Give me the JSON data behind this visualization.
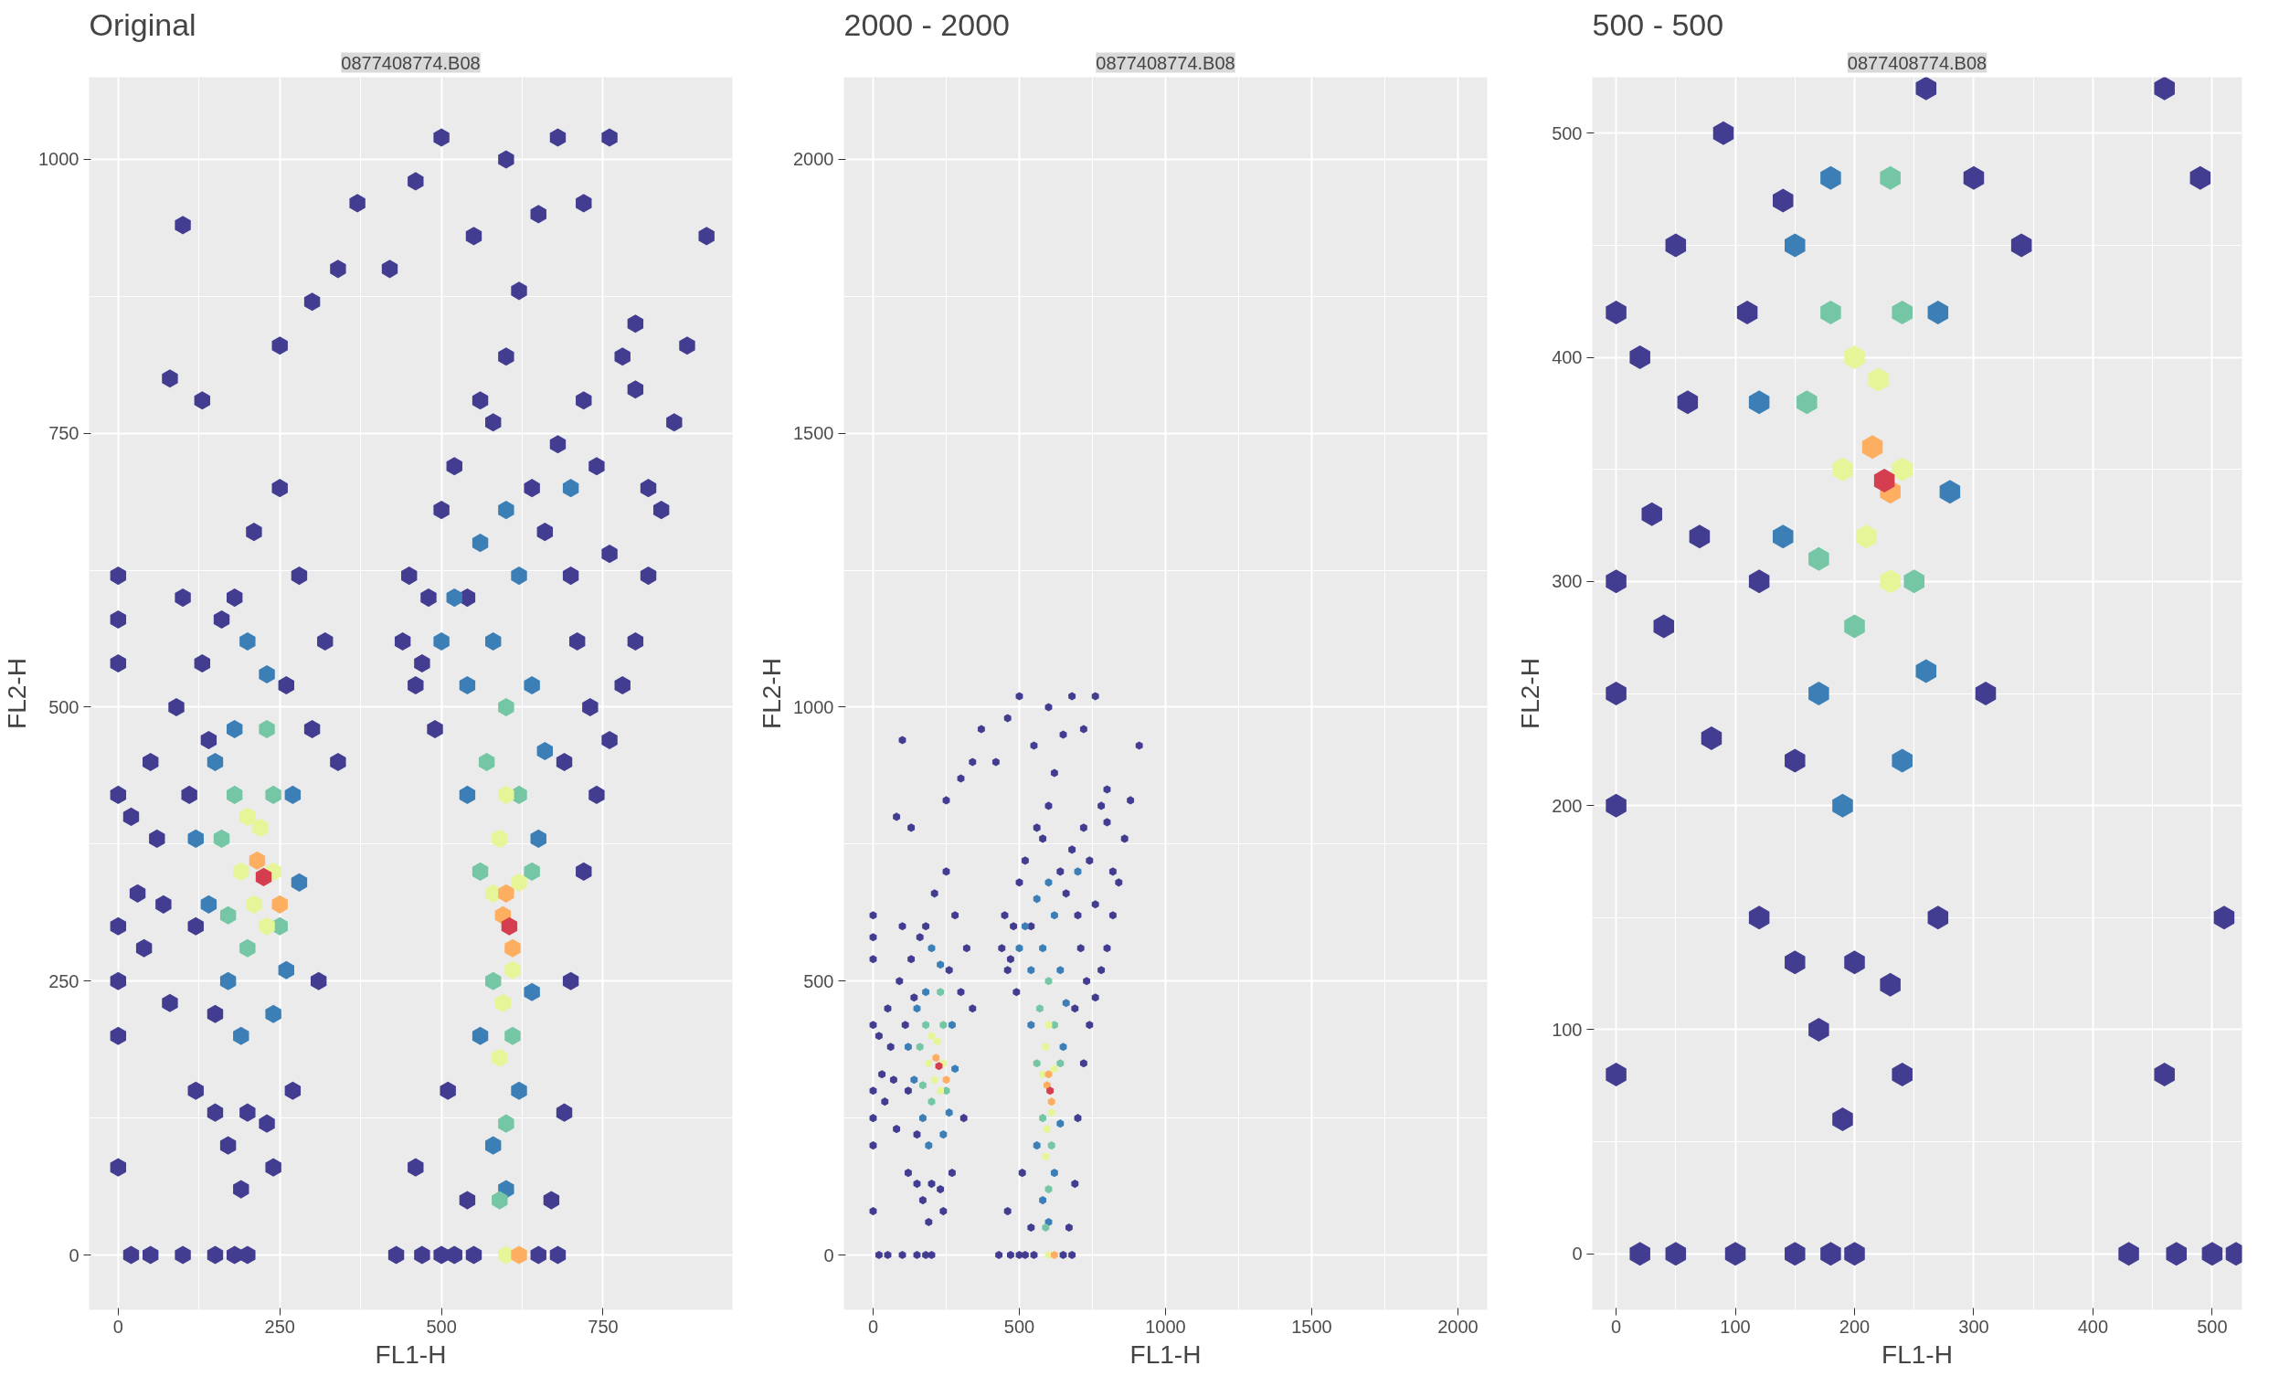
{
  "chart_data": [
    {
      "type": "scatter",
      "title": "Original",
      "subtitle": "0877408774.B08",
      "xlabel": "FL1-H",
      "ylabel": "FL2-H",
      "xlim": [
        -45,
        950
      ],
      "ylim": [
        -50,
        1075
      ],
      "xticks": [
        0,
        250,
        500,
        750
      ],
      "yticks": [
        0,
        250,
        500,
        750,
        1000
      ],
      "grid": true,
      "series": [
        {
          "color": "#423d91",
          "x": [
            0,
            0,
            0,
            0,
            0,
            0,
            0,
            0,
            20,
            30,
            40,
            50,
            60,
            70,
            80,
            90,
            100,
            110,
            120,
            120,
            130,
            140,
            150,
            150,
            160,
            170,
            180,
            190,
            200,
            210,
            230,
            240,
            250,
            260,
            270,
            280,
            300,
            310,
            320,
            340,
            80,
            100,
            130,
            250,
            300,
            340,
            370,
            200,
            150,
            100,
            50,
            20,
            180,
            430,
            470,
            500,
            520,
            550,
            650,
            680,
            460,
            510,
            540,
            670,
            690,
            700,
            720,
            740,
            760,
            780,
            800,
            820,
            840,
            860,
            880,
            910,
            450,
            470,
            490,
            500,
            520,
            540,
            560,
            580,
            600,
            620,
            640,
            660,
            680,
            700,
            720,
            740,
            760,
            780,
            800,
            820,
            500,
            600,
            680,
            760,
            420,
            460,
            550,
            650,
            720,
            800,
            460,
            690,
            710,
            730,
            440,
            480
          ],
          "values": [
            620,
            580,
            540,
            420,
            300,
            250,
            200,
            80,
            400,
            330,
            280,
            450,
            380,
            320,
            230,
            500,
            600,
            420,
            300,
            150,
            540,
            470,
            220,
            130,
            580,
            100,
            600,
            60,
            130,
            660,
            120,
            80,
            700,
            520,
            150,
            620,
            480,
            250,
            560,
            450,
            800,
            940,
            780,
            830,
            870,
            900,
            960,
            0,
            0,
            0,
            0,
            0,
            0,
            0,
            0,
            0,
            0,
            0,
            0,
            0,
            80,
            150,
            50,
            50,
            130,
            250,
            350,
            420,
            470,
            520,
            560,
            620,
            680,
            760,
            830,
            930,
            620,
            540,
            480,
            680,
            720,
            600,
            780,
            760,
            820,
            880,
            700,
            660,
            740,
            620,
            780,
            720,
            640,
            820,
            850,
            700,
            1020,
            1000,
            1020,
            1020,
            900,
            980,
            930,
            950,
            960,
            790,
            520,
            450,
            560,
            500,
            560,
            600
          ]
        },
        {
          "color": "#3b7fb6",
          "x": [
            120,
            140,
            150,
            170,
            180,
            190,
            260,
            270,
            280,
            230,
            200,
            240,
            520,
            540,
            560,
            580,
            600,
            620,
            640,
            660,
            540,
            580,
            620,
            650,
            560,
            640,
            600,
            700,
            500
          ],
          "values": [
            380,
            320,
            450,
            250,
            480,
            200,
            260,
            420,
            340,
            530,
            560,
            220,
            600,
            520,
            650,
            100,
            60,
            150,
            520,
            460,
            420,
            560,
            620,
            380,
            200,
            240,
            680,
            700,
            560
          ]
        },
        {
          "color": "#74c6a4",
          "x": [
            160,
            170,
            180,
            250,
            240,
            200,
            230,
            570,
            600,
            620,
            580,
            610,
            600,
            560,
            640,
            590
          ],
          "values": [
            380,
            310,
            420,
            300,
            420,
            280,
            480,
            450,
            500,
            420,
            250,
            200,
            120,
            350,
            350,
            50
          ]
        },
        {
          "color": "#e6f598",
          "x": [
            190,
            210,
            220,
            240,
            200,
            230,
            590,
            595,
            610,
            580,
            620,
            600,
            590,
            600
          ],
          "values": [
            350,
            320,
            390,
            350,
            400,
            300,
            380,
            230,
            260,
            330,
            340,
            420,
            180,
            0
          ]
        },
        {
          "color": "#fdae61",
          "x": [
            215,
            250,
            600,
            610,
            595,
            620
          ],
          "values": [
            360,
            320,
            330,
            280,
            310,
            0
          ]
        },
        {
          "color": "#d53e4f",
          "x": [
            225,
            605
          ],
          "values": [
            345,
            300
          ]
        }
      ]
    },
    {
      "type": "scatter",
      "title": "2000 - 2000",
      "subtitle": "0877408774.B08",
      "xlabel": "FL1-H",
      "ylabel": "FL2-H",
      "xlim": [
        -100,
        2100
      ],
      "ylim": [
        -100,
        2150
      ],
      "xticks": [
        0,
        500,
        1000,
        1500,
        2000
      ],
      "yticks": [
        0,
        500,
        1000,
        1500,
        2000
      ],
      "grid": true,
      "series": [
        {
          "color": "#423d91",
          "x": [
            0,
            0,
            0,
            0,
            0,
            0,
            0,
            0,
            20,
            30,
            40,
            50,
            60,
            70,
            80,
            90,
            100,
            110,
            120,
            120,
            130,
            140,
            150,
            150,
            160,
            170,
            180,
            190,
            200,
            210,
            230,
            240,
            250,
            260,
            270,
            280,
            300,
            310,
            320,
            340,
            80,
            100,
            130,
            250,
            300,
            340,
            370,
            200,
            150,
            100,
            50,
            20,
            180,
            430,
            470,
            500,
            520,
            550,
            650,
            680,
            460,
            510,
            540,
            670,
            690,
            700,
            720,
            740,
            760,
            780,
            800,
            820,
            840,
            860,
            880,
            910,
            450,
            470,
            490,
            500,
            520,
            540,
            560,
            580,
            600,
            620,
            640,
            660,
            680,
            700,
            720,
            740,
            760,
            780,
            800,
            820,
            500,
            600,
            680,
            760,
            420,
            460,
            550,
            650,
            720,
            800,
            460,
            690,
            710,
            730,
            440,
            480
          ],
          "values": [
            620,
            580,
            540,
            420,
            300,
            250,
            200,
            80,
            400,
            330,
            280,
            450,
            380,
            320,
            230,
            500,
            600,
            420,
            300,
            150,
            540,
            470,
            220,
            130,
            580,
            100,
            600,
            60,
            130,
            660,
            120,
            80,
            700,
            520,
            150,
            620,
            480,
            250,
            560,
            450,
            800,
            940,
            780,
            830,
            870,
            900,
            960,
            0,
            0,
            0,
            0,
            0,
            0,
            0,
            0,
            0,
            0,
            0,
            0,
            0,
            80,
            150,
            50,
            50,
            130,
            250,
            350,
            420,
            470,
            520,
            560,
            620,
            680,
            760,
            830,
            930,
            620,
            540,
            480,
            680,
            720,
            600,
            780,
            760,
            820,
            880,
            700,
            660,
            740,
            620,
            780,
            720,
            640,
            820,
            850,
            700,
            1020,
            1000,
            1020,
            1020,
            900,
            980,
            930,
            950,
            960,
            790,
            520,
            450,
            560,
            500,
            560,
            600
          ]
        },
        {
          "color": "#3b7fb6",
          "x": [
            120,
            140,
            150,
            170,
            180,
            190,
            260,
            270,
            280,
            230,
            200,
            240,
            520,
            540,
            560,
            580,
            600,
            620,
            640,
            660,
            540,
            580,
            620,
            650,
            560,
            640,
            600,
            700,
            500
          ],
          "values": [
            380,
            320,
            450,
            250,
            480,
            200,
            260,
            420,
            340,
            530,
            560,
            220,
            600,
            520,
            650,
            100,
            60,
            150,
            520,
            460,
            420,
            560,
            620,
            380,
            200,
            240,
            680,
            700,
            560
          ]
        },
        {
          "color": "#74c6a4",
          "x": [
            160,
            170,
            180,
            250,
            240,
            200,
            230,
            570,
            600,
            620,
            580,
            610,
            600,
            560,
            640,
            590
          ],
          "values": [
            380,
            310,
            420,
            300,
            420,
            280,
            480,
            450,
            500,
            420,
            250,
            200,
            120,
            350,
            350,
            50
          ]
        },
        {
          "color": "#e6f598",
          "x": [
            190,
            210,
            220,
            240,
            200,
            230,
            590,
            595,
            610,
            580,
            620,
            600,
            590,
            600
          ],
          "values": [
            350,
            320,
            390,
            350,
            400,
            300,
            380,
            230,
            260,
            330,
            340,
            420,
            180,
            0
          ]
        },
        {
          "color": "#fdae61",
          "x": [
            215,
            250,
            600,
            610,
            595,
            620
          ],
          "values": [
            360,
            320,
            330,
            280,
            310,
            0
          ]
        },
        {
          "color": "#d53e4f",
          "x": [
            225,
            605
          ],
          "values": [
            345,
            300
          ]
        }
      ]
    },
    {
      "type": "scatter",
      "title": "500 - 500",
      "subtitle": "0877408774.B08",
      "xlabel": "FL1-H",
      "ylabel": "FL2-H",
      "xlim": [
        -20,
        525
      ],
      "ylim": [
        -25,
        525
      ],
      "xticks": [
        0,
        100,
        200,
        300,
        400,
        500
      ],
      "yticks": [
        0,
        100,
        200,
        300,
        400,
        500
      ],
      "grid": true,
      "series": [
        {
          "color": "#423d91",
          "x": [
            0,
            0,
            0,
            0,
            0,
            20,
            30,
            40,
            50,
            60,
            70,
            80,
            90,
            110,
            120,
            120,
            140,
            150,
            150,
            170,
            190,
            200,
            230,
            240,
            260,
            270,
            300,
            310,
            340,
            200,
            150,
            100,
            50,
            20,
            180,
            430,
            470,
            500,
            520,
            460,
            510,
            490,
            460
          ],
          "values": [
            420,
            300,
            250,
            200,
            80,
            400,
            330,
            280,
            450,
            380,
            320,
            230,
            500,
            420,
            300,
            150,
            470,
            220,
            130,
            100,
            60,
            130,
            120,
            80,
            520,
            150,
            480,
            250,
            450,
            0,
            0,
            0,
            0,
            0,
            0,
            0,
            0,
            0,
            0,
            80,
            150,
            480,
            520
          ]
        },
        {
          "color": "#3b7fb6",
          "x": [
            120,
            140,
            150,
            170,
            180,
            190,
            260,
            270,
            280,
            240
          ],
          "values": [
            380,
            320,
            450,
            250,
            480,
            200,
            260,
            420,
            340,
            220
          ]
        },
        {
          "color": "#74c6a4",
          "x": [
            160,
            170,
            180,
            250,
            240,
            200,
            230
          ],
          "values": [
            380,
            310,
            420,
            300,
            420,
            280,
            480
          ]
        },
        {
          "color": "#e6f598",
          "x": [
            190,
            210,
            220,
            240,
            200,
            230
          ],
          "values": [
            350,
            320,
            390,
            350,
            400,
            300
          ]
        },
        {
          "color": "#fdae61",
          "x": [
            215,
            230
          ],
          "values": [
            360,
            340
          ]
        },
        {
          "color": "#d53e4f",
          "x": [
            225
          ],
          "values": [
            345
          ]
        }
      ]
    }
  ]
}
